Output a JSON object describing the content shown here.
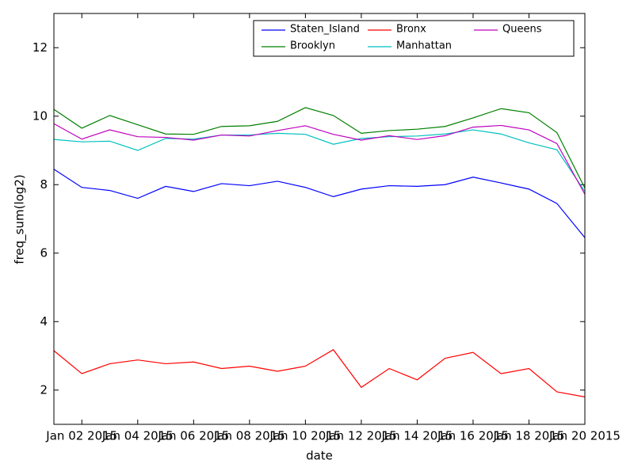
{
  "chart_data": {
    "type": "line",
    "x_label": "date",
    "y_label": "freq_sum(log2)",
    "x": [
      "2015-01-01",
      "2015-01-02",
      "2015-01-03",
      "2015-01-04",
      "2015-01-05",
      "2015-01-06",
      "2015-01-07",
      "2015-01-08",
      "2015-01-09",
      "2015-01-10",
      "2015-01-11",
      "2015-01-12",
      "2015-01-13",
      "2015-01-14",
      "2015-01-15",
      "2015-01-16",
      "2015-01-17",
      "2015-01-18",
      "2015-01-19",
      "2015-01-20"
    ],
    "xlim": [
      "2015-01-01",
      "2015-01-20"
    ],
    "xticks": [
      {
        "value": "2015-01-02",
        "label": "Jan 02 2015"
      },
      {
        "value": "2015-01-04",
        "label": "Jan 04 2015"
      },
      {
        "value": "2015-01-06",
        "label": "Jan 06 2015"
      },
      {
        "value": "2015-01-08",
        "label": "Jan 08 2015"
      },
      {
        "value": "2015-01-10",
        "label": "Jan 10 2015"
      },
      {
        "value": "2015-01-12",
        "label": "Jan 12 2015"
      },
      {
        "value": "2015-01-14",
        "label": "Jan 14 2015"
      },
      {
        "value": "2015-01-16",
        "label": "Jan 16 2015"
      },
      {
        "value": "2015-01-18",
        "label": "Jan 18 2015"
      },
      {
        "value": "2015-01-20",
        "label": "Jan 20 2015"
      }
    ],
    "ylim": [
      1,
      13
    ],
    "yticks": [
      2,
      4,
      6,
      8,
      10,
      12
    ],
    "legend": "upper right",
    "legend_columns": 3,
    "series": [
      {
        "name": "Staten_Island",
        "color": "#0000ff",
        "values": [
          8.45,
          7.92,
          7.83,
          7.6,
          7.95,
          7.8,
          8.03,
          7.97,
          8.1,
          7.92,
          7.65,
          7.87,
          7.97,
          7.95,
          8.0,
          8.22,
          8.05,
          7.87,
          7.45,
          6.45
        ]
      },
      {
        "name": "Brooklyn",
        "color": "#008000",
        "values": [
          10.2,
          9.65,
          10.02,
          9.75,
          9.48,
          9.47,
          9.7,
          9.72,
          9.85,
          10.25,
          10.02,
          9.5,
          9.58,
          9.62,
          9.7,
          9.95,
          10.22,
          10.1,
          9.52,
          7.9
        ]
      },
      {
        "name": "Bronx",
        "color": "#ff0000",
        "values": [
          3.15,
          2.48,
          2.77,
          2.88,
          2.77,
          2.82,
          2.63,
          2.7,
          2.55,
          2.7,
          3.18,
          2.08,
          2.63,
          2.3,
          2.93,
          3.1,
          2.48,
          2.63,
          1.95,
          1.8
        ]
      },
      {
        "name": "Manhattan",
        "color": "#00bfbf",
        "values": [
          9.32,
          9.25,
          9.27,
          9.0,
          9.35,
          9.33,
          9.45,
          9.45,
          9.5,
          9.47,
          9.18,
          9.35,
          9.4,
          9.42,
          9.48,
          9.6,
          9.48,
          9.22,
          9.02,
          7.8
        ]
      },
      {
        "name": "Queens",
        "color": "#bf00bf",
        "values": [
          9.78,
          9.33,
          9.6,
          9.4,
          9.38,
          9.3,
          9.45,
          9.42,
          9.58,
          9.72,
          9.47,
          9.3,
          9.43,
          9.32,
          9.43,
          9.68,
          9.73,
          9.6,
          9.2,
          7.72
        ]
      }
    ]
  }
}
